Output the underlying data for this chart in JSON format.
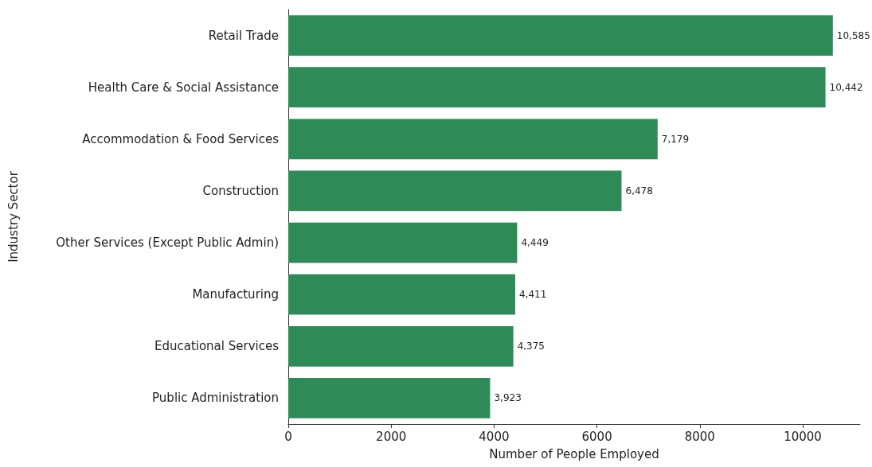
{
  "chart_data": {
    "type": "bar",
    "orientation": "horizontal",
    "xlabel": "Number of People Employed",
    "ylabel": "Industry Sector",
    "categories": [
      "Retail Trade",
      "Health Care & Social Assistance",
      "Accommodation & Food Services",
      "Construction",
      "Other Services (Except Public Admin)",
      "Manufacturing",
      "Educational Services",
      "Public Administration"
    ],
    "values": [
      10585,
      10442,
      7179,
      6478,
      4449,
      4411,
      4375,
      3923
    ],
    "value_labels": [
      "10,585",
      "10,442",
      "7,179",
      "6,478",
      "4,449",
      "4,411",
      "4,375",
      "3,923"
    ],
    "color": "#2e8b57",
    "xlim": [
      0,
      11114
    ],
    "xticks": [
      0,
      2000,
      4000,
      6000,
      8000,
      10000
    ],
    "grid": false
  }
}
